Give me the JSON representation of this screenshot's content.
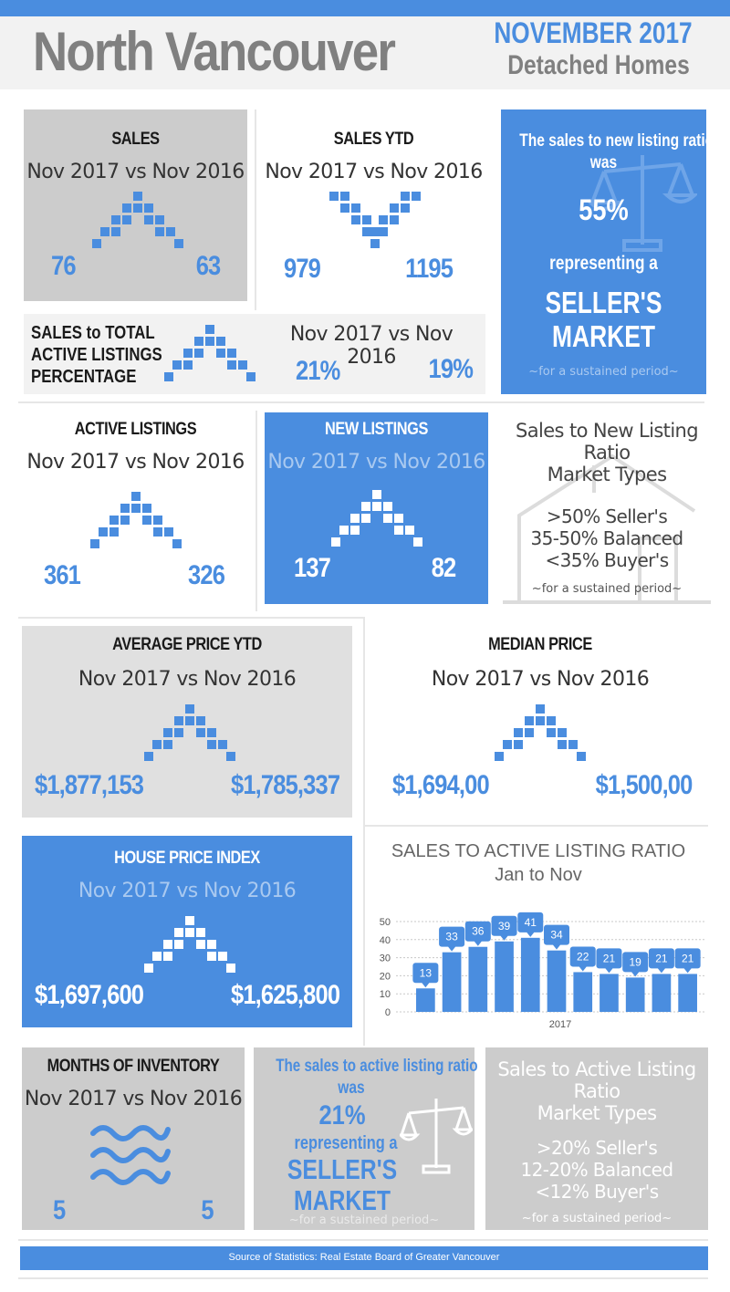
{
  "header": {
    "title": "North Vancouver",
    "month": "NOVEMBER 2017",
    "segment": "Detached Homes"
  },
  "compare_label": "Nov 2017 vs Nov 2016",
  "sales": {
    "heading": "SALES",
    "current": "76",
    "previous": "63",
    "trend": "up"
  },
  "sales_ytd": {
    "heading": "SALES YTD",
    "current": "979",
    "previous": "1195",
    "trend": "down"
  },
  "sales_new_ratio": {
    "line1": "The sales to new listing ratio",
    "line2": "was",
    "value": "55%",
    "line3": "representing a",
    "market1": "SELLER'S",
    "market2": "MARKET",
    "note": "~for a sustained period~"
  },
  "sales_total_active": {
    "heading1": "SALES to TOTAL",
    "heading2": "ACTIVE LISTINGS",
    "heading3": "PERCENTAGE",
    "current": "21%",
    "previous": "19%",
    "trend": "up"
  },
  "active_listings": {
    "heading": "ACTIVE LISTINGS",
    "current": "361",
    "previous": "326",
    "trend": "up"
  },
  "new_listings": {
    "heading": "NEW LISTINGS",
    "current": "137",
    "previous": "82",
    "trend": "up"
  },
  "new_listing_types": {
    "title1": "Sales to New Listing",
    "title2": "Ratio",
    "title3": "Market Types",
    "t1": ">50% Seller's",
    "t2": "35-50% Balanced",
    "t3": "<35% Buyer's",
    "note": "~for a sustained period~"
  },
  "avg_price_ytd": {
    "heading": "AVERAGE PRICE YTD",
    "current": "$1,877,153",
    "previous": "$1,785,337",
    "trend": "up"
  },
  "median_price": {
    "heading": "MEDIAN PRICE",
    "current": "$1,694,00",
    "previous": "$1,500,00",
    "trend": "up"
  },
  "hpi": {
    "heading": "HOUSE PRICE INDEX",
    "current": "$1,697,600",
    "previous": "$1,625,800",
    "trend": "up"
  },
  "chart_data": {
    "type": "bar",
    "title": "SALES TO ACTIVE LISTING RATIO",
    "subtitle": "Jan to Nov",
    "xlabel": "2017",
    "categories": [
      "",
      "",
      "",
      "",
      "",
      "",
      "",
      "",
      "",
      "",
      ""
    ],
    "values": [
      13,
      33,
      36,
      39,
      41,
      34,
      22,
      21,
      19,
      21,
      21
    ],
    "yticks": [
      "0",
      "10",
      "20",
      "30",
      "40",
      "50"
    ],
    "ylim": [
      0,
      50
    ],
    "grid": true,
    "bar_color": "#4a8ddf"
  },
  "months_inventory": {
    "heading": "MONTHS OF INVENTORY",
    "current": "5",
    "previous": "5",
    "trend": "flat"
  },
  "sales_active_ratio": {
    "line1": "The sales to active listing ratio",
    "line2": "was",
    "value": "21%",
    "line3": "representing a",
    "market1": "SELLER'S",
    "market2": "MARKET",
    "note": "~for a sustained period~"
  },
  "active_listing_types": {
    "title1": "Sales to Active Listing",
    "title2": "Ratio",
    "title3": "Market Types",
    "t1": ">20% Seller's",
    "t2": "12-20% Balanced",
    "t3": "<12% Buyer's",
    "note": "~for a sustained period~"
  },
  "footer": {
    "source": "Source of Statistics: Real Estate Board of Greater Vancouver"
  },
  "colors": {
    "accent": "#4a8ddf",
    "panel_gray": "#cccccc",
    "title_gray": "#808080"
  }
}
